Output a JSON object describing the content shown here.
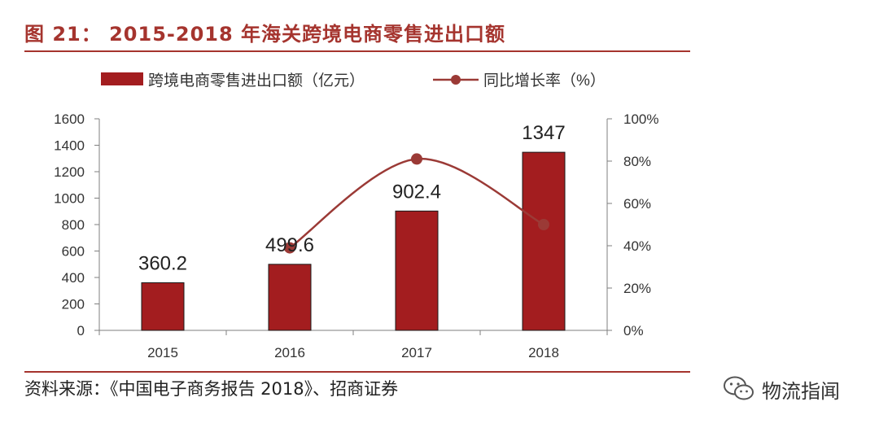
{
  "header": {
    "title": "图 21： 2015-2018 年海关跨境电商零售进出口额"
  },
  "footer": {
    "source": "资料来源：《中国电子商务报告 2018》、招商证券"
  },
  "watermark": {
    "text": "物流指闻",
    "icon": "wechat-icon"
  },
  "colors": {
    "accent": "#a5342e",
    "bar": "#a31d1f",
    "line": "#9b3a36",
    "axis": "#7f7f7f",
    "text": "#222222"
  },
  "chart_data": {
    "type": "bar",
    "categories": [
      "2015",
      "2016",
      "2017",
      "2018"
    ],
    "series": [
      {
        "name": "跨境电商零售进出口额（亿元）",
        "type": "bar",
        "axis": "left",
        "values": [
          360.2,
          499.6,
          902.4,
          1347
        ],
        "labels": [
          "360.2",
          "499.6",
          "902.4",
          "1347"
        ]
      },
      {
        "name": "同比增长率（%）",
        "type": "line",
        "axis": "right",
        "smooth": true,
        "values": [
          null,
          39,
          81,
          50
        ]
      }
    ],
    "y_left": {
      "min": 0,
      "max": 1600,
      "ticks": [
        "0",
        "200",
        "400",
        "600",
        "800",
        "1000",
        "1200",
        "1400",
        "1600"
      ]
    },
    "y_right": {
      "min": 0,
      "max": 100,
      "ticks": [
        "0%",
        "20%",
        "40%",
        "60%",
        "80%",
        "100%"
      ]
    },
    "legend": "top",
    "grid": false
  }
}
